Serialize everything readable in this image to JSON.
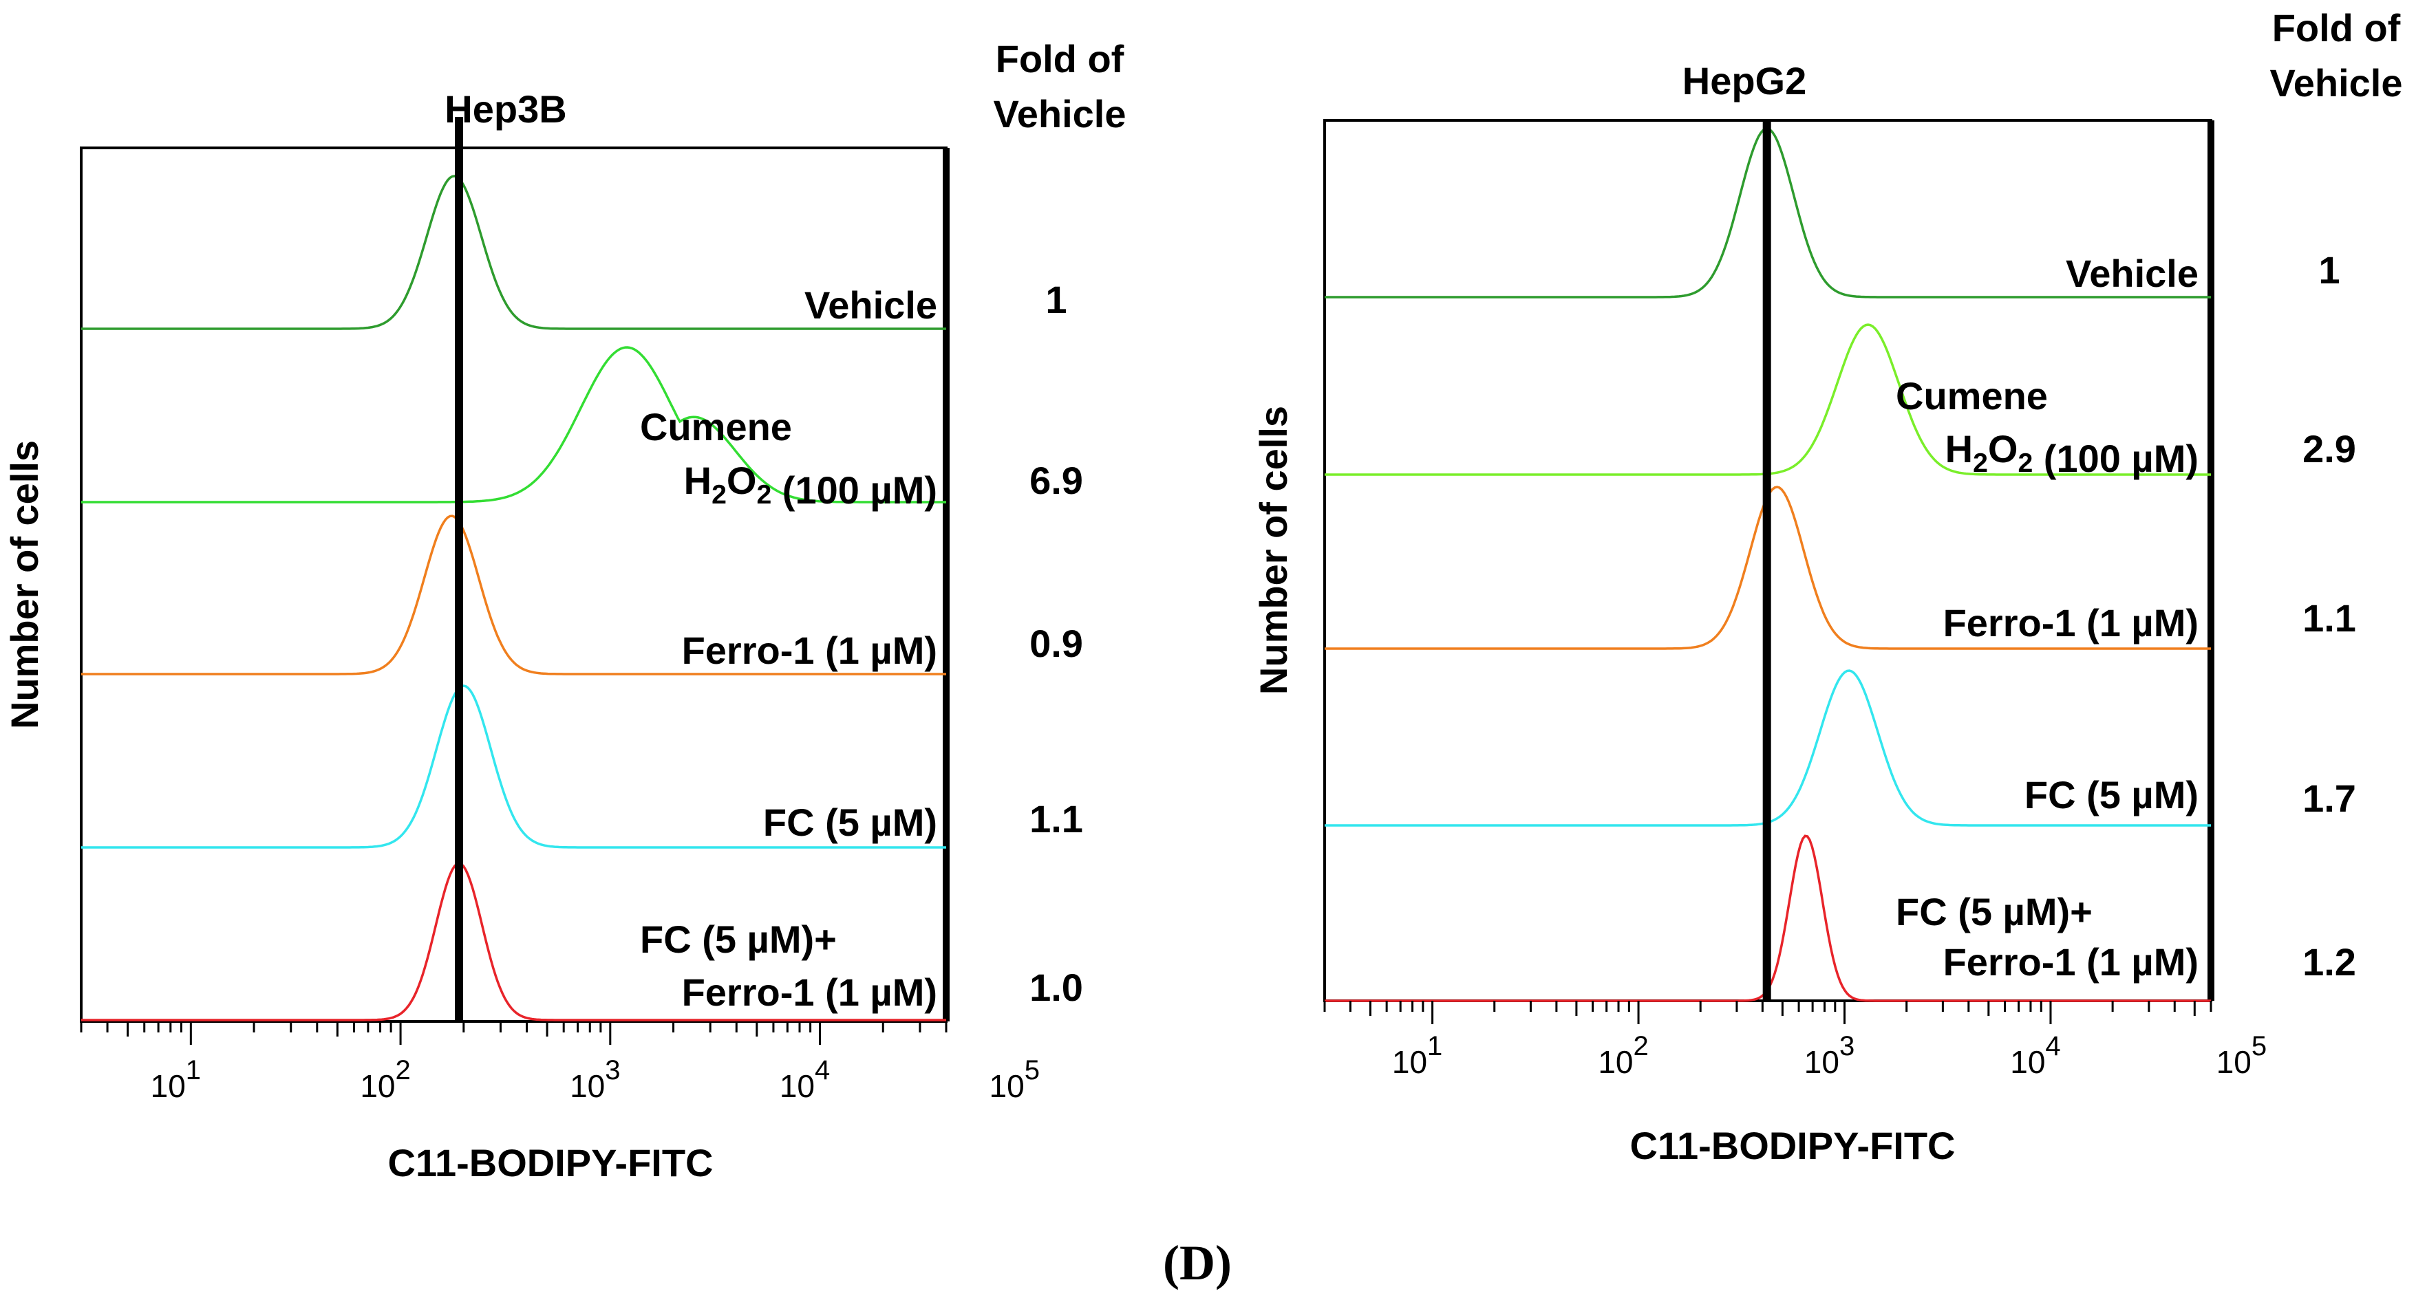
{
  "panel_label_text": "(D)",
  "chart_data": [
    {
      "type": "histogram-overlay",
      "title": "Hep3B",
      "xlabel": "C11-BODIPY-FITC",
      "ylabel": "Number of cells",
      "xscale": "log",
      "xlim": [
        3,
        40000
      ],
      "fold_header": [
        "Fold of",
        "Vehicle"
      ],
      "xticks": [
        {
          "value": 10,
          "base": "10",
          "exp": "1"
        },
        {
          "value": 100,
          "base": "10",
          "exp": "2"
        },
        {
          "value": 1000,
          "base": "10",
          "exp": "3"
        },
        {
          "value": 10000,
          "base": "10",
          "exp": "4"
        },
        {
          "value": 100000,
          "base": "10",
          "exp": "5"
        }
      ],
      "reference_line_x": 190,
      "series": [
        {
          "name": "Vehicle",
          "label_lines": [
            "Vehicle"
          ],
          "fold": "1",
          "color": "#2e9c2e",
          "peak": 180,
          "width": 0.13,
          "shoulder": null
        },
        {
          "name": "Cumene H2O2 (100 µM)",
          "label_lines": [
            "Cumene",
            "H2O2 (100 µM)"
          ],
          "fold": "6.9",
          "color": "#33dd33",
          "peak": 1200,
          "width": 0.22,
          "shoulder": 2500
        },
        {
          "name": "Ferro-1 (1 µM)",
          "label_lines": [
            "Ferro-1 (1 µM)"
          ],
          "fold": "0.9",
          "color": "#f07f1e",
          "peak": 175,
          "width": 0.13,
          "shoulder": null
        },
        {
          "name": "FC (5 µM)",
          "label_lines": [
            "FC (5 µM)"
          ],
          "fold": "1.1",
          "color": "#33e6ee",
          "peak": 200,
          "width": 0.13,
          "shoulder": null
        },
        {
          "name": "FC (5 µM)+ Ferro-1 (1 µM)",
          "label_lines": [
            "FC (5 µM)+",
            "Ferro-1 (1 µM)"
          ],
          "fold": "1.0",
          "color": "#e8242a",
          "peak": 190,
          "width": 0.11,
          "shoulder": null
        }
      ]
    },
    {
      "type": "histogram-overlay",
      "title": "HepG2",
      "xlabel": "C11-BODIPY-FITC",
      "ylabel": "Number of cells",
      "xscale": "log",
      "xlim": [
        3,
        60000
      ],
      "fold_header": [
        "Fold of",
        "Vehicle"
      ],
      "xticks": [
        {
          "value": 10,
          "base": "10",
          "exp": "1"
        },
        {
          "value": 100,
          "base": "10",
          "exp": "2"
        },
        {
          "value": 1000,
          "base": "10",
          "exp": "3"
        },
        {
          "value": 10000,
          "base": "10",
          "exp": "4"
        },
        {
          "value": 100000,
          "base": "10",
          "exp": "5"
        }
      ],
      "reference_line_x": 420,
      "series": [
        {
          "name": "Vehicle",
          "label_lines": [
            "Vehicle"
          ],
          "fold": "1",
          "color": "#2e9c2e",
          "peak": 420,
          "width": 0.13,
          "shoulder": null
        },
        {
          "name": "Cumene H2O2 (100 µM)",
          "label_lines": [
            "Cumene",
            "H2O2 (100 µM)"
          ],
          "fold": "2.9",
          "color": "#7aee2a",
          "peak": 1300,
          "width": 0.15,
          "shoulder": null
        },
        {
          "name": "Ferro-1 (1 µM)",
          "label_lines": [
            "Ferro-1 (1 µM)"
          ],
          "fold": "1.1",
          "color": "#f07f1e",
          "peak": 470,
          "width": 0.13,
          "shoulder": null
        },
        {
          "name": "FC (5 µM)",
          "label_lines": [
            "FC (5 µM)"
          ],
          "fold": "1.7",
          "color": "#33e6ee",
          "peak": 1050,
          "width": 0.14,
          "shoulder": null
        },
        {
          "name": "FC (5 µM)+ Ferro-1 (1 µM)",
          "label_lines": [
            "FC (5 µM)+",
            "Ferro-1 (1 µM)"
          ],
          "fold": "1.2",
          "color": "#e8242a",
          "peak": 650,
          "width": 0.08,
          "shoulder": null
        }
      ]
    }
  ]
}
